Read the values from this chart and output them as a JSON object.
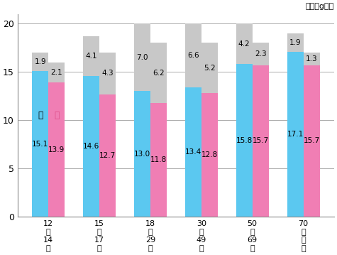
{
  "age_groups": [
    "12\n〜\n14\n歳",
    "15\n〜\n17\n歳",
    "18\n〜\n29\n歳",
    "30\n〜\n49\n歳",
    "50\n〜\n69\n歳",
    "70\n歳\n以\n上"
  ],
  "male_bottom": [
    15.1,
    14.6,
    13.0,
    13.4,
    15.8,
    17.1
  ],
  "female_bottom": [
    13.9,
    12.7,
    11.8,
    12.8,
    15.7,
    15.7
  ],
  "male_top": [
    1.9,
    4.1,
    7.0,
    6.6,
    4.2,
    1.9
  ],
  "female_top": [
    2.1,
    4.3,
    6.2,
    5.2,
    2.3,
    1.3
  ],
  "male_color": "#5BC8F0",
  "female_color": "#F07EB4",
  "gray_color": "#C8C8C8",
  "bar_width": 0.32,
  "ylim": [
    0,
    21
  ],
  "yticks": [
    0,
    5,
    10,
    15,
    20
  ],
  "unit_label": "単位：g／日",
  "male_label": "男",
  "female_label": "女",
  "bg_color": "#FFFFFF",
  "grid_color": "#AAAAAA"
}
